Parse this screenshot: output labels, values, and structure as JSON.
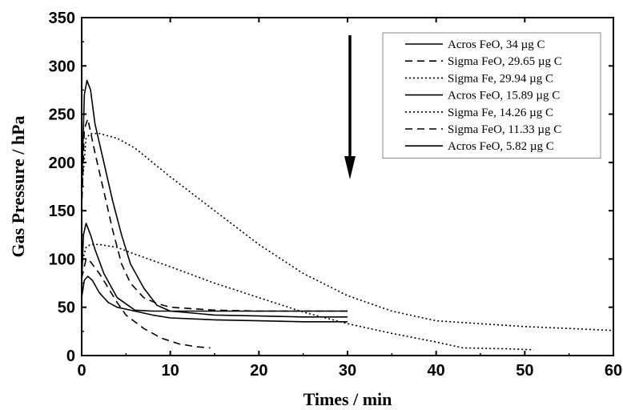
{
  "chart_data": {
    "type": "line",
    "xlabel": "Times / min",
    "ylabel": "Gas Pressure / hPa",
    "xlim": [
      0,
      60
    ],
    "ylim": [
      0,
      350
    ],
    "xticks": [
      "0",
      "10",
      "20",
      "30",
      "40",
      "50",
      "60"
    ],
    "yticks": [
      "0",
      "50",
      "100",
      "150",
      "200",
      "250",
      "300",
      "350"
    ],
    "grid": false,
    "legend_position": "top-right",
    "annotation": "downward arrow (decreasing carbon content)",
    "series": [
      {
        "name": "Acros FeO, 34 µg C",
        "style": "solid",
        "x": [
          0,
          0.3,
          0.6,
          1.0,
          1.5,
          2.5,
          3.5,
          4.5,
          5.5,
          7,
          8.5,
          10,
          15,
          20,
          25,
          30
        ],
        "y": [
          170,
          270,
          285,
          275,
          240,
          200,
          160,
          125,
          95,
          70,
          52,
          46,
          42,
          41,
          40,
          40
        ]
      },
      {
        "name": "Sigma FeO, 29.65 µg C",
        "style": "dashed",
        "x": [
          0,
          0.3,
          0.7,
          1.5,
          2.5,
          3.5,
          4.5,
          5.5,
          7,
          8.5,
          10,
          15,
          20,
          25,
          30
        ],
        "y": [
          150,
          235,
          245,
          210,
          170,
          130,
          95,
          75,
          60,
          54,
          50,
          47,
          46,
          46,
          46
        ]
      },
      {
        "name": "Sigma Fe, 29.94 µg C",
        "style": "dotted",
        "x": [
          0,
          0.5,
          1,
          2,
          4,
          6,
          10,
          15,
          20,
          25,
          30,
          35,
          40,
          45,
          50,
          55,
          60
        ],
        "y": [
          170,
          225,
          230,
          230,
          225,
          215,
          185,
          150,
          115,
          85,
          62,
          46,
          36,
          33,
          30,
          28,
          26
        ]
      },
      {
        "name": "Acros FeO, 15.89 µg C",
        "style": "solid",
        "x": [
          0,
          0.2,
          0.5,
          1,
          1.5,
          2.5,
          4,
          6,
          8,
          10,
          15,
          20,
          25,
          30
        ],
        "y": [
          75,
          125,
          137,
          125,
          110,
          85,
          60,
          47,
          46,
          46,
          46,
          46,
          46,
          46
        ]
      },
      {
        "name": "Sigma Fe, 14.26 µg C",
        "style": "dotted",
        "x": [
          0,
          0.5,
          1,
          2,
          4,
          6,
          10,
          15,
          20,
          25,
          30,
          35,
          40,
          43,
          48,
          51
        ],
        "y": [
          95,
          112,
          115,
          115,
          112,
          105,
          92,
          75,
          60,
          45,
          33,
          23,
          14,
          8,
          7,
          6
        ]
      },
      {
        "name": "Sigma FeO, 11.33 µg C",
        "style": "dashed",
        "x": [
          0,
          0.5,
          1,
          2,
          3,
          4,
          5,
          7,
          9,
          11,
          13,
          14.5
        ],
        "y": [
          80,
          100,
          97,
          85,
          70,
          55,
          42,
          28,
          18,
          12,
          9,
          8
        ]
      },
      {
        "name": "Acros FeO, 5.82 µg C",
        "style": "solid",
        "x": [
          0,
          0.3,
          0.7,
          1.2,
          2,
          3,
          4,
          6,
          8,
          10,
          15,
          20,
          25,
          30
        ],
        "y": [
          60,
          78,
          82,
          78,
          65,
          55,
          50,
          46,
          42,
          39,
          37,
          36,
          35,
          35
        ]
      }
    ]
  }
}
